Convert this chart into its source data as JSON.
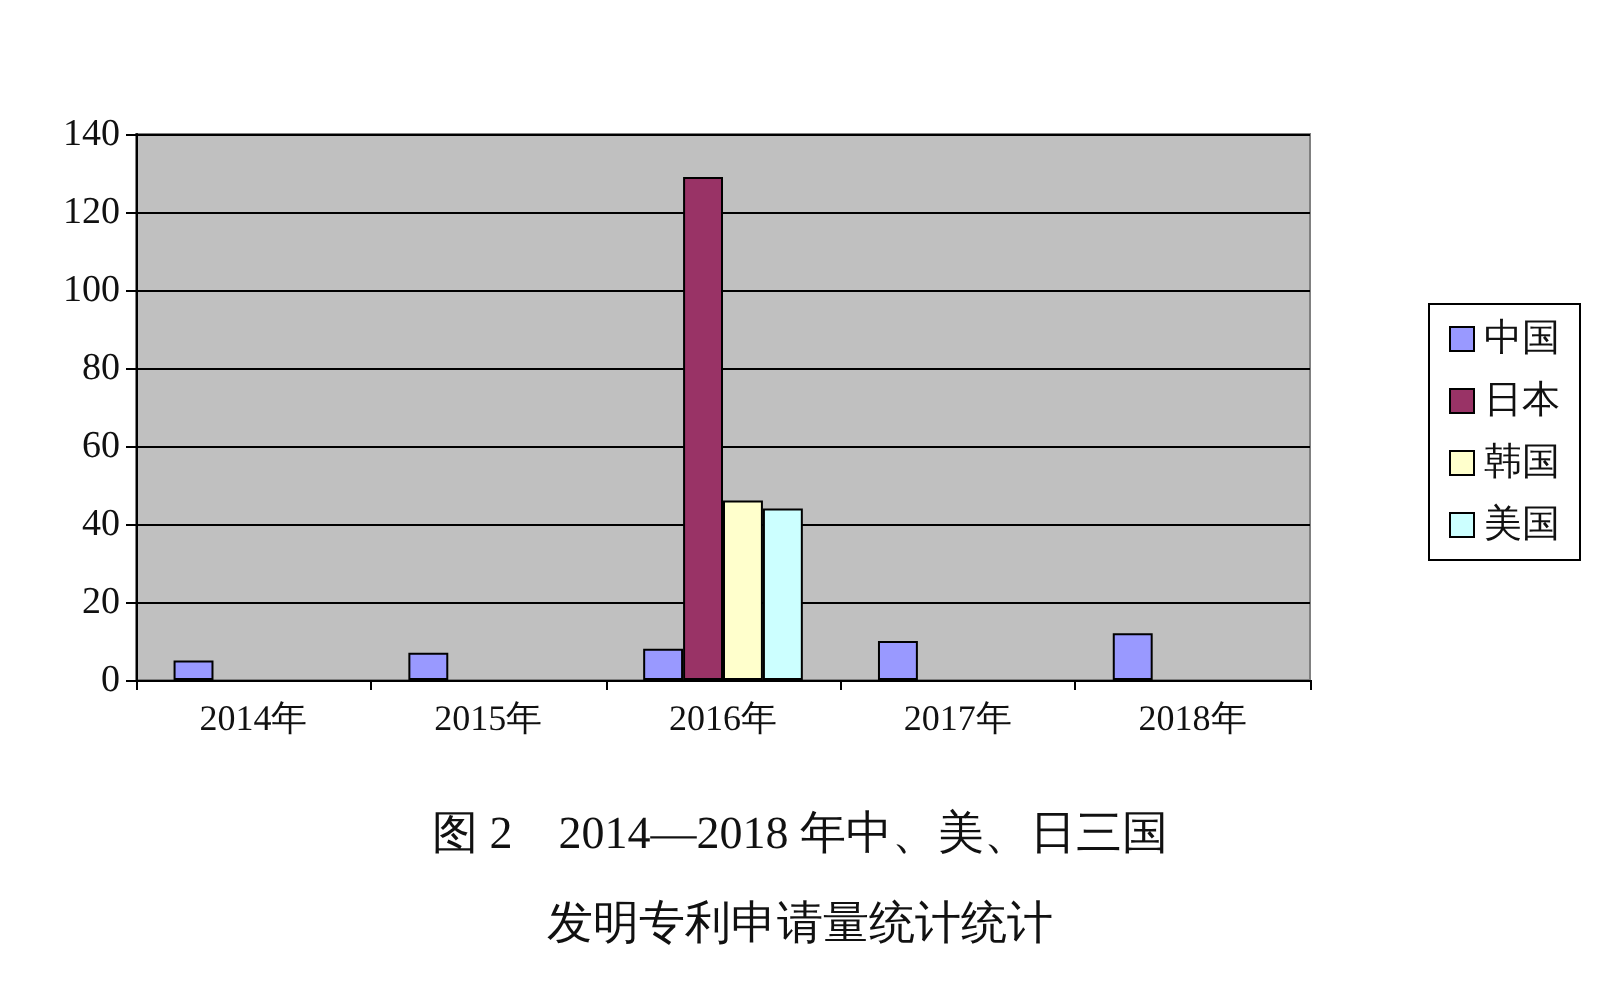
{
  "chart_data": {
    "type": "bar",
    "title": "图 2　2014—2018 年中、美、日三国",
    "subtitle": "发明专利申请量统计统计",
    "categories": [
      "2014年",
      "2015年",
      "2016年",
      "2017年",
      "2018年"
    ],
    "series": [
      {
        "name": "中国",
        "color": "#9999ff",
        "values": [
          5,
          7,
          8,
          10,
          12
        ]
      },
      {
        "name": "日本",
        "color": "#993366",
        "values": [
          null,
          null,
          129,
          null,
          null
        ]
      },
      {
        "name": "韩国",
        "color": "#ffffcc",
        "values": [
          null,
          null,
          46,
          null,
          null
        ]
      },
      {
        "name": "美国",
        "color": "#ccffff",
        "values": [
          null,
          null,
          44,
          null,
          null
        ]
      }
    ],
    "ylim": [
      0,
      140
    ],
    "yticks": [
      0,
      20,
      40,
      60,
      80,
      100,
      120,
      140
    ],
    "grid": "y",
    "legend": "right"
  }
}
